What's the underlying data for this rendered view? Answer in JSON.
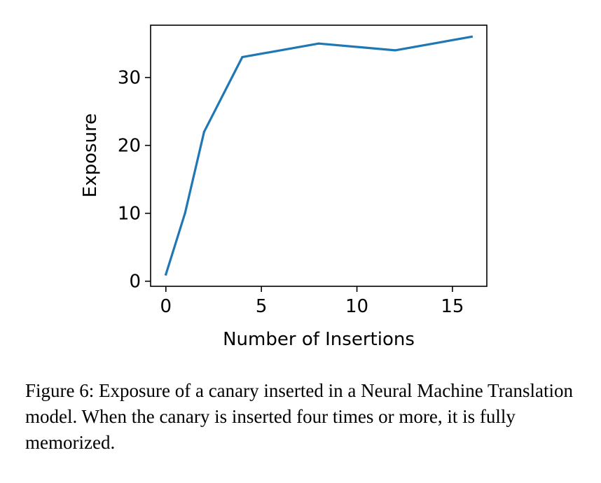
{
  "chart_data": {
    "type": "line",
    "title": "",
    "xlabel": "Number of Insertions",
    "ylabel": "Exposure",
    "xlim": [
      -0.8,
      16.8
    ],
    "ylim": [
      -0.75,
      37.7
    ],
    "xticks": [
      0,
      5,
      10,
      15
    ],
    "yticks": [
      0,
      10,
      20,
      30
    ],
    "grid": false,
    "series": [
      {
        "x": [
          0,
          1,
          2,
          4,
          8,
          12,
          16
        ],
        "y": [
          1,
          10,
          22,
          33,
          35,
          34,
          36
        ]
      }
    ],
    "line_color": "#1f77b4"
  },
  "caption": "Figure 6: Exposure of a canary inserted in a Neural Machine Translation model. When the canary is inserted four times or more, it is fully memorized."
}
